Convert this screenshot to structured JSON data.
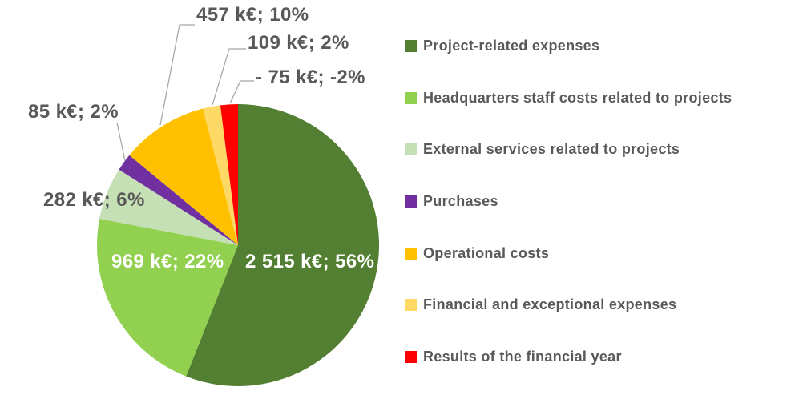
{
  "figure": {
    "background": "#ffffff",
    "text_color": "#595959",
    "inside_label_color": "#ffffff",
    "leader_line_color": "#a6a6a6"
  },
  "chart_data": {
    "type": "pie",
    "title": "",
    "unit": "k€",
    "legend_position": "right",
    "start_angle_deg": 0,
    "direction": "clockwise",
    "slices": [
      {
        "name": "Project-related expenses",
        "value_keur": 2515,
        "pct": 56,
        "color": "#527f31",
        "label": "2 515 k€; 56%",
        "label_placement": "inside"
      },
      {
        "name": "Headquarters staff costs related to projects",
        "value_keur": 969,
        "pct": 22,
        "color": "#92d050",
        "label": "969 k€; 22%",
        "label_placement": "inside"
      },
      {
        "name": "External services related to projects",
        "value_keur": 282,
        "pct": 6,
        "color": "#c5e0b4",
        "label": "282 k€; 6%",
        "label_placement": "outside"
      },
      {
        "name": "Purchases",
        "value_keur": 85,
        "pct": 2,
        "color": "#7030a0",
        "label": "85 k€; 2%",
        "label_placement": "outside"
      },
      {
        "name": "Operational costs",
        "value_keur": 457,
        "pct": 10,
        "color": "#ffc000",
        "label": "457 k€; 10%",
        "label_placement": "outside"
      },
      {
        "name": "Financial and exceptional expenses",
        "value_keur": 109,
        "pct": 2,
        "color": "#ffd966",
        "label": "109 k€; 2%",
        "label_placement": "outside"
      },
      {
        "name": "Results of the financial year",
        "value_keur": -75,
        "pct": -2,
        "color": "#ff0000",
        "label": "- 75 k€; -2%",
        "label_placement": "outside"
      }
    ]
  }
}
